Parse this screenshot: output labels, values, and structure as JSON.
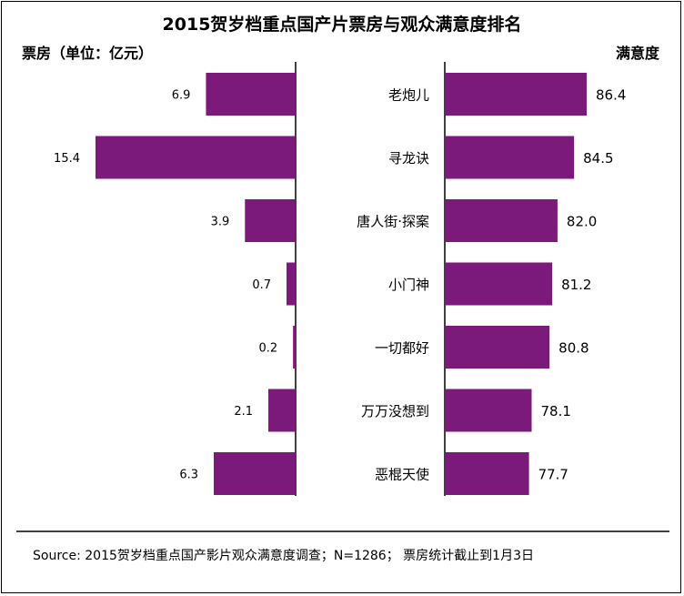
{
  "chart_data": {
    "type": "bar",
    "title": "2015贺岁档重点国产片票房与观众满意度排名",
    "left_axis_label": "票房（单位：亿元）",
    "right_axis_label": "满意度",
    "categories": [
      "老炮儿",
      "寻龙诀",
      "唐人街·探案",
      "小门神",
      "一切都好",
      "万万没想到",
      "恶棍天使"
    ],
    "series": [
      {
        "name": "票房（单位：亿元）",
        "values": [
          6.9,
          15.4,
          3.9,
          0.7,
          0.2,
          2.1,
          6.3
        ],
        "xlim": [
          0,
          15.4
        ]
      },
      {
        "name": "满意度",
        "values": [
          86.4,
          84.5,
          82.0,
          81.2,
          80.8,
          78.1,
          77.7
        ],
        "xlim": [
          65,
          86.4
        ]
      }
    ],
    "left_value_labels": [
      "6.9",
      "15.4",
      "3.9",
      "0.7",
      "0.2",
      "2.1",
      "6.3"
    ],
    "right_value_labels": [
      "86.4",
      "84.5",
      "82.0",
      "81.2",
      "80.8",
      "78.1",
      "77.7"
    ],
    "bar_color": "#7B1A7A",
    "grid": false,
    "legend": "none"
  },
  "footer": {
    "source": "Source: 2015贺岁档重点国产影片观众满意度调查；N=1286； 票房统计截止到1月3日"
  }
}
